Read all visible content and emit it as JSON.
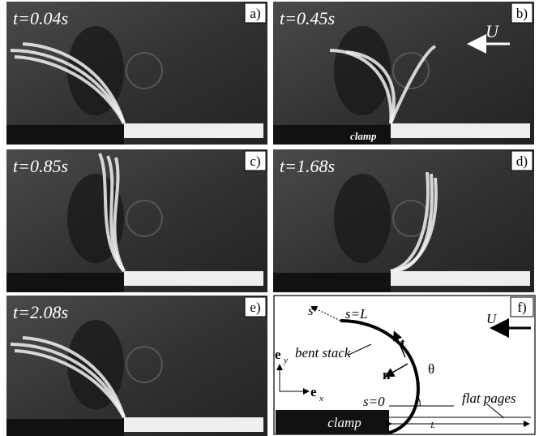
{
  "panels": [
    {
      "time": "t=0.04s",
      "letter": "a)"
    },
    {
      "time": "t=0.45s",
      "letter": "b)",
      "flow": "U",
      "clamp": "clamp"
    },
    {
      "time": "t=0.85s",
      "letter": "c)"
    },
    {
      "time": "t=1.68s",
      "letter": "d)"
    },
    {
      "time": "t=2.08s",
      "letter": "e)"
    }
  ],
  "diagram": {
    "letter": "f)",
    "s": "s",
    "s_end": "s=L",
    "bent_stack": "bent stack",
    "t": "t",
    "n": "n",
    "theta": "θ",
    "s_start": "s=0",
    "ey": {
      "symbol": "e",
      "sub": "y"
    },
    "ex": {
      "symbol": "e",
      "sub": "x"
    },
    "flow": "U",
    "flat_pages": "flat pages",
    "clamp": "clamp",
    "length": "L"
  }
}
